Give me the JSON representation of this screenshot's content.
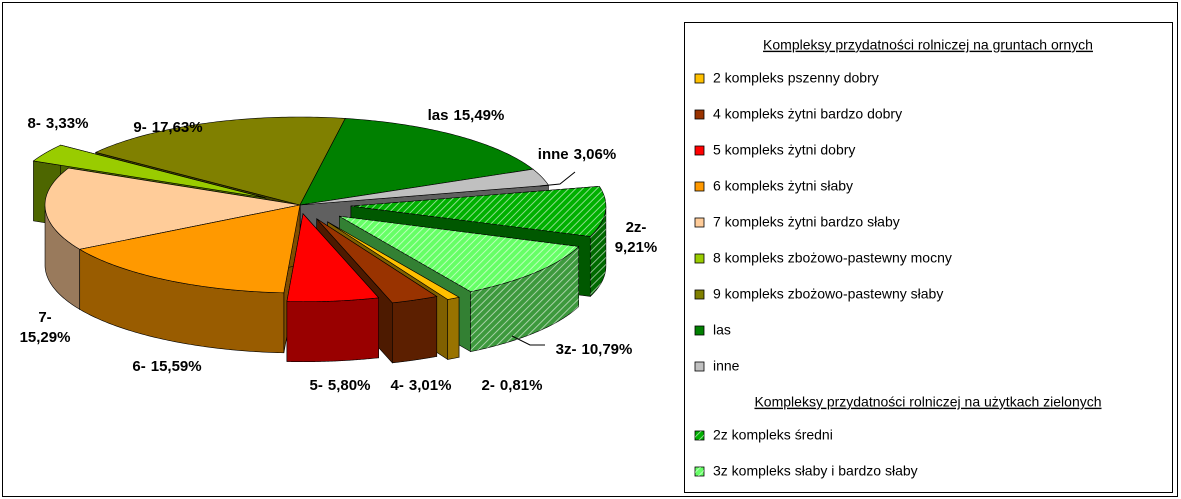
{
  "chart_data": {
    "type": "pie3d",
    "groups": [
      {
        "title": "Kompleksy przydatności rolniczej na gruntach ornych",
        "slices": [
          {
            "name": "2 kompleks pszenny dobry",
            "label": "2-",
            "value": 0.81,
            "value_label": "0,81%",
            "color": "#ffc000"
          },
          {
            "name": "4 kompleks żytni bardzo dobry",
            "label": "4-",
            "value": 3.01,
            "value_label": "3,01%",
            "color": "#993300"
          },
          {
            "name": "5 kompleks żytni dobry",
            "label": "5-",
            "value": 5.8,
            "value_label": "5,80%",
            "color": "#ff0000"
          },
          {
            "name": "6 kompleks żytni słaby",
            "label": "6-",
            "value": 15.59,
            "value_label": "15,59%",
            "color": "#ff9900"
          },
          {
            "name": "7 kompleks żytni bardzo słaby",
            "label": "7-",
            "value": 15.29,
            "value_label": "15,29%",
            "color": "#ffcc99"
          },
          {
            "name": "8 kompleks zbożowo-pastewny mocny",
            "label": "8-",
            "value": 3.33,
            "value_label": "3,33%",
            "color": "#99cc00"
          },
          {
            "name": "9 kompleks zbożowo-pastewny słaby",
            "label": "9-",
            "value": 17.63,
            "value_label": "17,63%",
            "color": "#808000"
          },
          {
            "name": "las",
            "label": "las",
            "value": 15.49,
            "value_label": "15,49%",
            "color": "#008000"
          },
          {
            "name": "inne",
            "label": "inne",
            "value": 3.06,
            "value_label": "3,06%",
            "color": "#c0c0c0"
          }
        ]
      },
      {
        "title": "Kompleksy przydatności rolniczej na użytkach zielonych",
        "slices": [
          {
            "name": "2z kompleks średni",
            "label": "2z-",
            "value": 9.21,
            "value_label": "9,21%",
            "color": "#00b000",
            "hatched": true
          },
          {
            "name": "3z kompleks słaby i bardzo słaby",
            "label": "3z-",
            "value": 10.79,
            "value_label": "10,79%",
            "color": "#66ff66",
            "hatched": true
          }
        ]
      }
    ]
  }
}
